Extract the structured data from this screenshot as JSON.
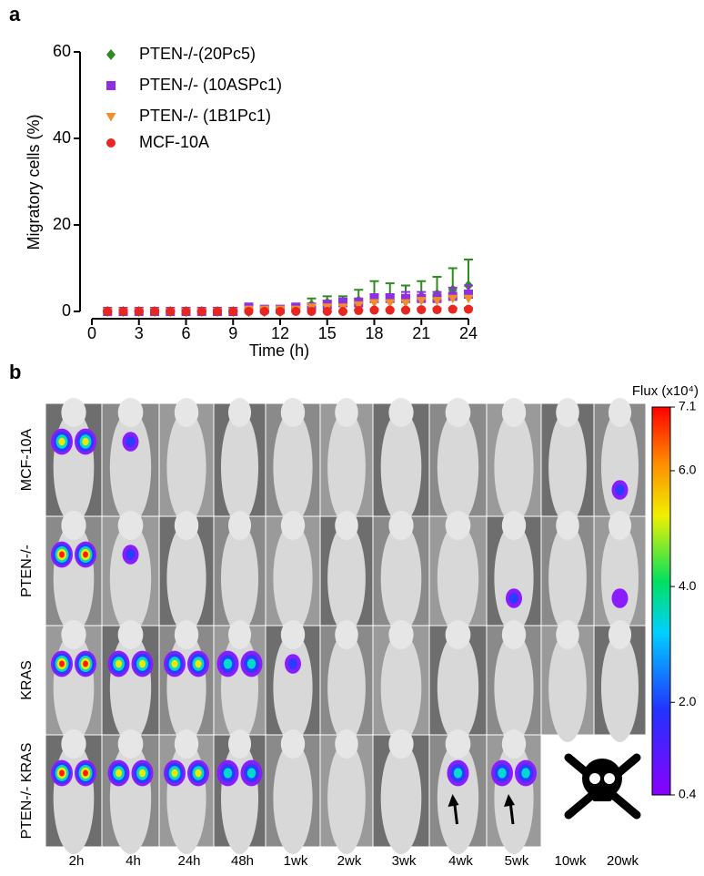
{
  "panel_labels": [
    "a",
    "b"
  ],
  "chart_data": {
    "type": "scatter",
    "x_label": "Time (h)",
    "y_label": "Migratory cells (%)",
    "x": [
      1,
      2,
      3,
      4,
      5,
      6,
      7,
      8,
      9,
      10,
      11,
      12,
      13,
      14,
      15,
      16,
      17,
      18,
      19,
      20,
      21,
      22,
      23,
      24
    ],
    "xlim": [
      0,
      24
    ],
    "xticks": [
      0,
      3,
      6,
      9,
      12,
      15,
      18,
      21,
      24
    ],
    "ylim": [
      0,
      60
    ],
    "yticks": [
      0,
      20,
      40,
      60
    ],
    "series": [
      {
        "name": "PTEN-/-(20Pc5)",
        "color": "#2e8b1f",
        "marker": "diamond",
        "values": [
          0,
          0,
          0,
          0,
          0,
          0,
          0,
          0,
          0,
          0,
          0,
          0,
          0.5,
          1.5,
          2,
          2,
          2.5,
          3,
          3,
          3,
          3.5,
          4,
          5,
          6
        ],
        "errors": [
          0,
          0,
          0,
          0,
          0,
          0,
          0,
          0,
          0,
          0,
          0,
          0,
          0.5,
          1.5,
          1.5,
          1.5,
          2.5,
          4,
          3.5,
          3,
          3.5,
          4,
          5,
          6
        ]
      },
      {
        "name": "PTEN-/- (10ASPc1)",
        "color": "#8e2fe6",
        "marker": "square",
        "values": [
          0,
          0,
          0,
          0,
          0,
          0,
          0,
          0,
          0,
          1,
          0.5,
          0.5,
          1,
          1,
          1.5,
          2,
          2,
          3,
          3,
          3,
          3,
          3,
          3.5,
          4
        ],
        "errors": [
          0,
          0,
          0,
          0,
          0,
          0,
          0,
          0,
          0,
          0.5,
          0.5,
          0.5,
          0.5,
          0.5,
          1,
          1,
          1,
          1,
          1,
          1.5,
          1.5,
          1.5,
          2,
          2
        ]
      },
      {
        "name": "PTEN-/- (1B1Pc1)",
        "color": "#ef8f2a",
        "marker": "triangle-down",
        "values": [
          0,
          0,
          0,
          0,
          0,
          0,
          0,
          0,
          0,
          0.5,
          0.5,
          0.5,
          0.5,
          1,
          1,
          1,
          1.5,
          2,
          2,
          2,
          2.5,
          2.5,
          3,
          3
        ],
        "errors": [
          0,
          0,
          0,
          0,
          0,
          0,
          0,
          0,
          0,
          0.3,
          0.3,
          0.3,
          0.3,
          0.5,
          0.5,
          0.5,
          0.5,
          0.5,
          0.5,
          0.5,
          0.5,
          0.5,
          0.5,
          0.5
        ]
      },
      {
        "name": "MCF-10A",
        "color": "#e8251f",
        "marker": "circle",
        "values": [
          0,
          0,
          0,
          0,
          0,
          0,
          0,
          0,
          0,
          0,
          0,
          0,
          0,
          0,
          0,
          0,
          0.2,
          0.3,
          0.3,
          0.3,
          0.4,
          0.4,
          0.5,
          0.5
        ],
        "errors": [
          0,
          0,
          0,
          0,
          0,
          0,
          0,
          0,
          0,
          0,
          0,
          0,
          0,
          0,
          0,
          0,
          0.2,
          0.2,
          0.2,
          0.2,
          0.3,
          0.3,
          0.3,
          0.3
        ]
      }
    ]
  },
  "imaging": {
    "rows": [
      "MCF-10A",
      "PTEN-/-",
      "KRAS",
      "PTEN-/- KRAS"
    ],
    "columns": [
      "2h",
      "4h",
      "24h",
      "48h",
      "1wk",
      "2wk",
      "3wk",
      "4wk",
      "5wk",
      "10wk",
      "20wk"
    ],
    "colorbar": {
      "title": "Flux (x10⁴)",
      "lim": [
        0.4,
        7.1
      ],
      "ticks": [
        7.1,
        {
          "value": 6,
          "label": "6.0"
        },
        {
          "value": 4,
          "label": "4.0"
        },
        {
          "value": 2,
          "label": "2.0"
        },
        0.4
      ]
    }
  }
}
